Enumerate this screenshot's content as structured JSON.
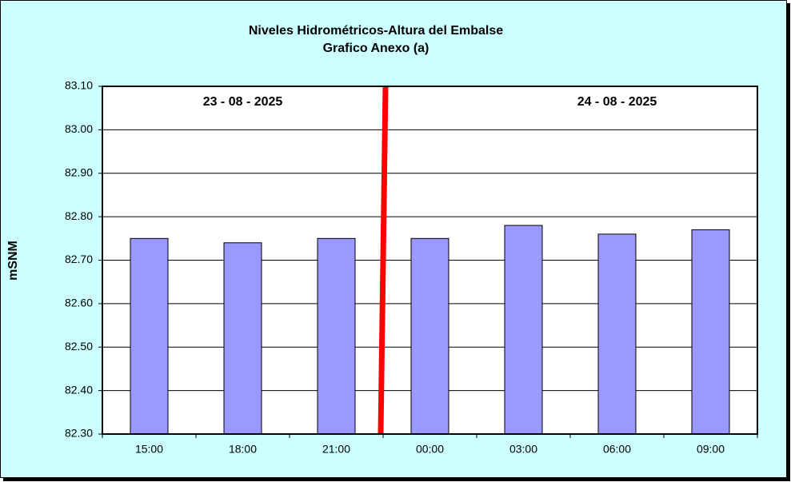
{
  "chart_data": {
    "type": "bar",
    "title": "Niveles Hidrométricos-Altura del Embalse",
    "subtitle": "Grafico Anexo (a)",
    "y_label": "mSNM",
    "annotations": [
      "23 - 08 - 2025",
      "24 - 08 - 2025"
    ],
    "categories": [
      "15:00",
      "18:00",
      "21:00",
      "00:00",
      "03:00",
      "06:00",
      "09:00"
    ],
    "values": [
      82.75,
      82.74,
      82.75,
      82.75,
      82.78,
      82.76,
      82.77
    ],
    "color": "#9999ff",
    "ylim": [
      82.3,
      83.1
    ],
    "yticks": [
      {
        "value": 82.3,
        "label": "82.30"
      },
      {
        "value": 82.4,
        "label": "82.40"
      },
      {
        "value": 82.5,
        "label": "82.50"
      },
      {
        "value": 82.6,
        "label": "82.60"
      },
      {
        "value": 82.7,
        "label": "82.70"
      },
      {
        "value": 82.8,
        "label": "82.80"
      },
      {
        "value": 82.9,
        "label": "82.90"
      },
      {
        "value": 83.0,
        "label": "83.00"
      },
      {
        "value": 83.1,
        "label": "83.10"
      }
    ],
    "grid": true
  }
}
